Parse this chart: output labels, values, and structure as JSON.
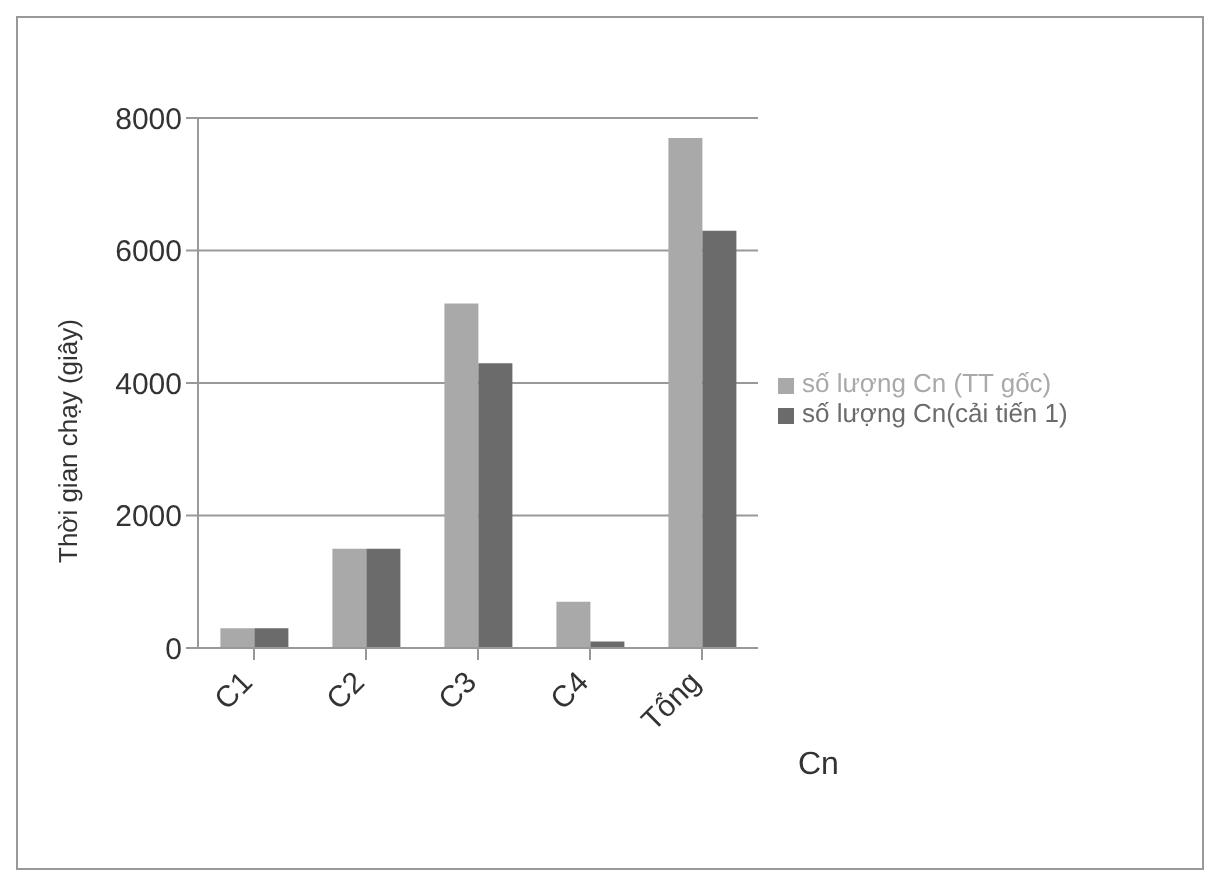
{
  "chart_data": {
    "type": "bar",
    "xlabel": "Cn",
    "ylabel": "Thời gian chạy (giây)",
    "categories": [
      "C1",
      "C2",
      "C3",
      "C4",
      "Tổng"
    ],
    "series": [
      {
        "name": "số lượng Cn (TT gốc)",
        "color": "#a9a9a9",
        "values": [
          300,
          1500,
          5200,
          700,
          7700
        ]
      },
      {
        "name": "số lượng Cn(cải tiến 1)",
        "color": "#6b6b6b",
        "values": [
          300,
          1500,
          4300,
          100,
          6300
        ]
      }
    ],
    "ylim": [
      0,
      8000
    ],
    "yticks": [
      0,
      2000,
      4000,
      6000,
      8000
    ],
    "grid": "y",
    "legend": "right"
  }
}
